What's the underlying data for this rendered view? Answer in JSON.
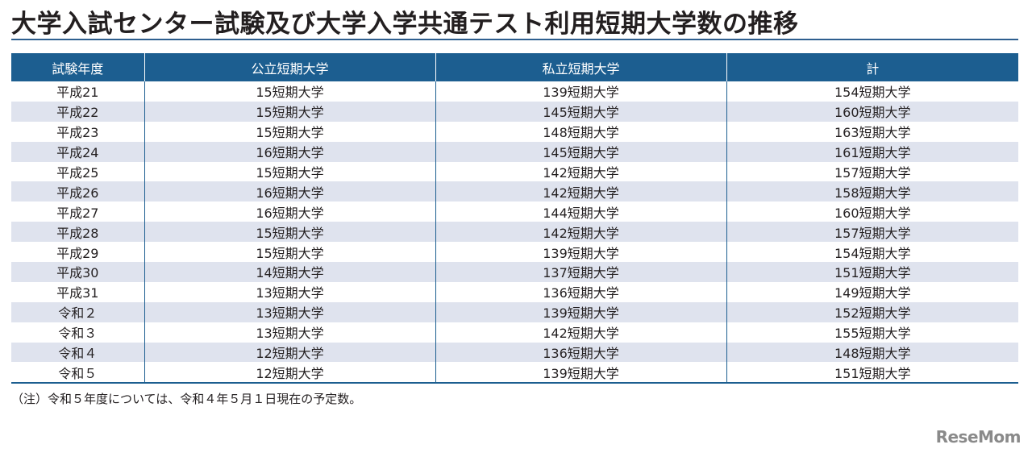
{
  "title": "大学入試センター試験及び大学入学共通テスト利用短期大学数の推移",
  "table": {
    "headers": [
      "試験年度",
      "公立短期大学",
      "私立短期大学",
      "計"
    ],
    "rows": [
      [
        "平成21",
        "15短期大学",
        "139短期大学",
        "154短期大学"
      ],
      [
        "平成22",
        "15短期大学",
        "145短期大学",
        "160短期大学"
      ],
      [
        "平成23",
        "15短期大学",
        "148短期大学",
        "163短期大学"
      ],
      [
        "平成24",
        "16短期大学",
        "145短期大学",
        "161短期大学"
      ],
      [
        "平成25",
        "15短期大学",
        "142短期大学",
        "157短期大学"
      ],
      [
        "平成26",
        "16短期大学",
        "142短期大学",
        "158短期大学"
      ],
      [
        "平成27",
        "16短期大学",
        "144短期大学",
        "160短期大学"
      ],
      [
        "平成28",
        "15短期大学",
        "142短期大学",
        "157短期大学"
      ],
      [
        "平成29",
        "15短期大学",
        "139短期大学",
        "154短期大学"
      ],
      [
        "平成30",
        "14短期大学",
        "137短期大学",
        "151短期大学"
      ],
      [
        "平成31",
        "13短期大学",
        "136短期大学",
        "149短期大学"
      ],
      [
        "令和２",
        "13短期大学",
        "139短期大学",
        "152短期大学"
      ],
      [
        "令和３",
        "13短期大学",
        "142短期大学",
        "155短期大学"
      ],
      [
        "令和４",
        "12短期大学",
        "136短期大学",
        "148短期大学"
      ],
      [
        "令和５",
        "12短期大学",
        "139短期大学",
        "151短期大学"
      ]
    ]
  },
  "note": "（注）令和５年度については、令和４年５月１日現在の予定数。",
  "logo": "ReseMom"
}
